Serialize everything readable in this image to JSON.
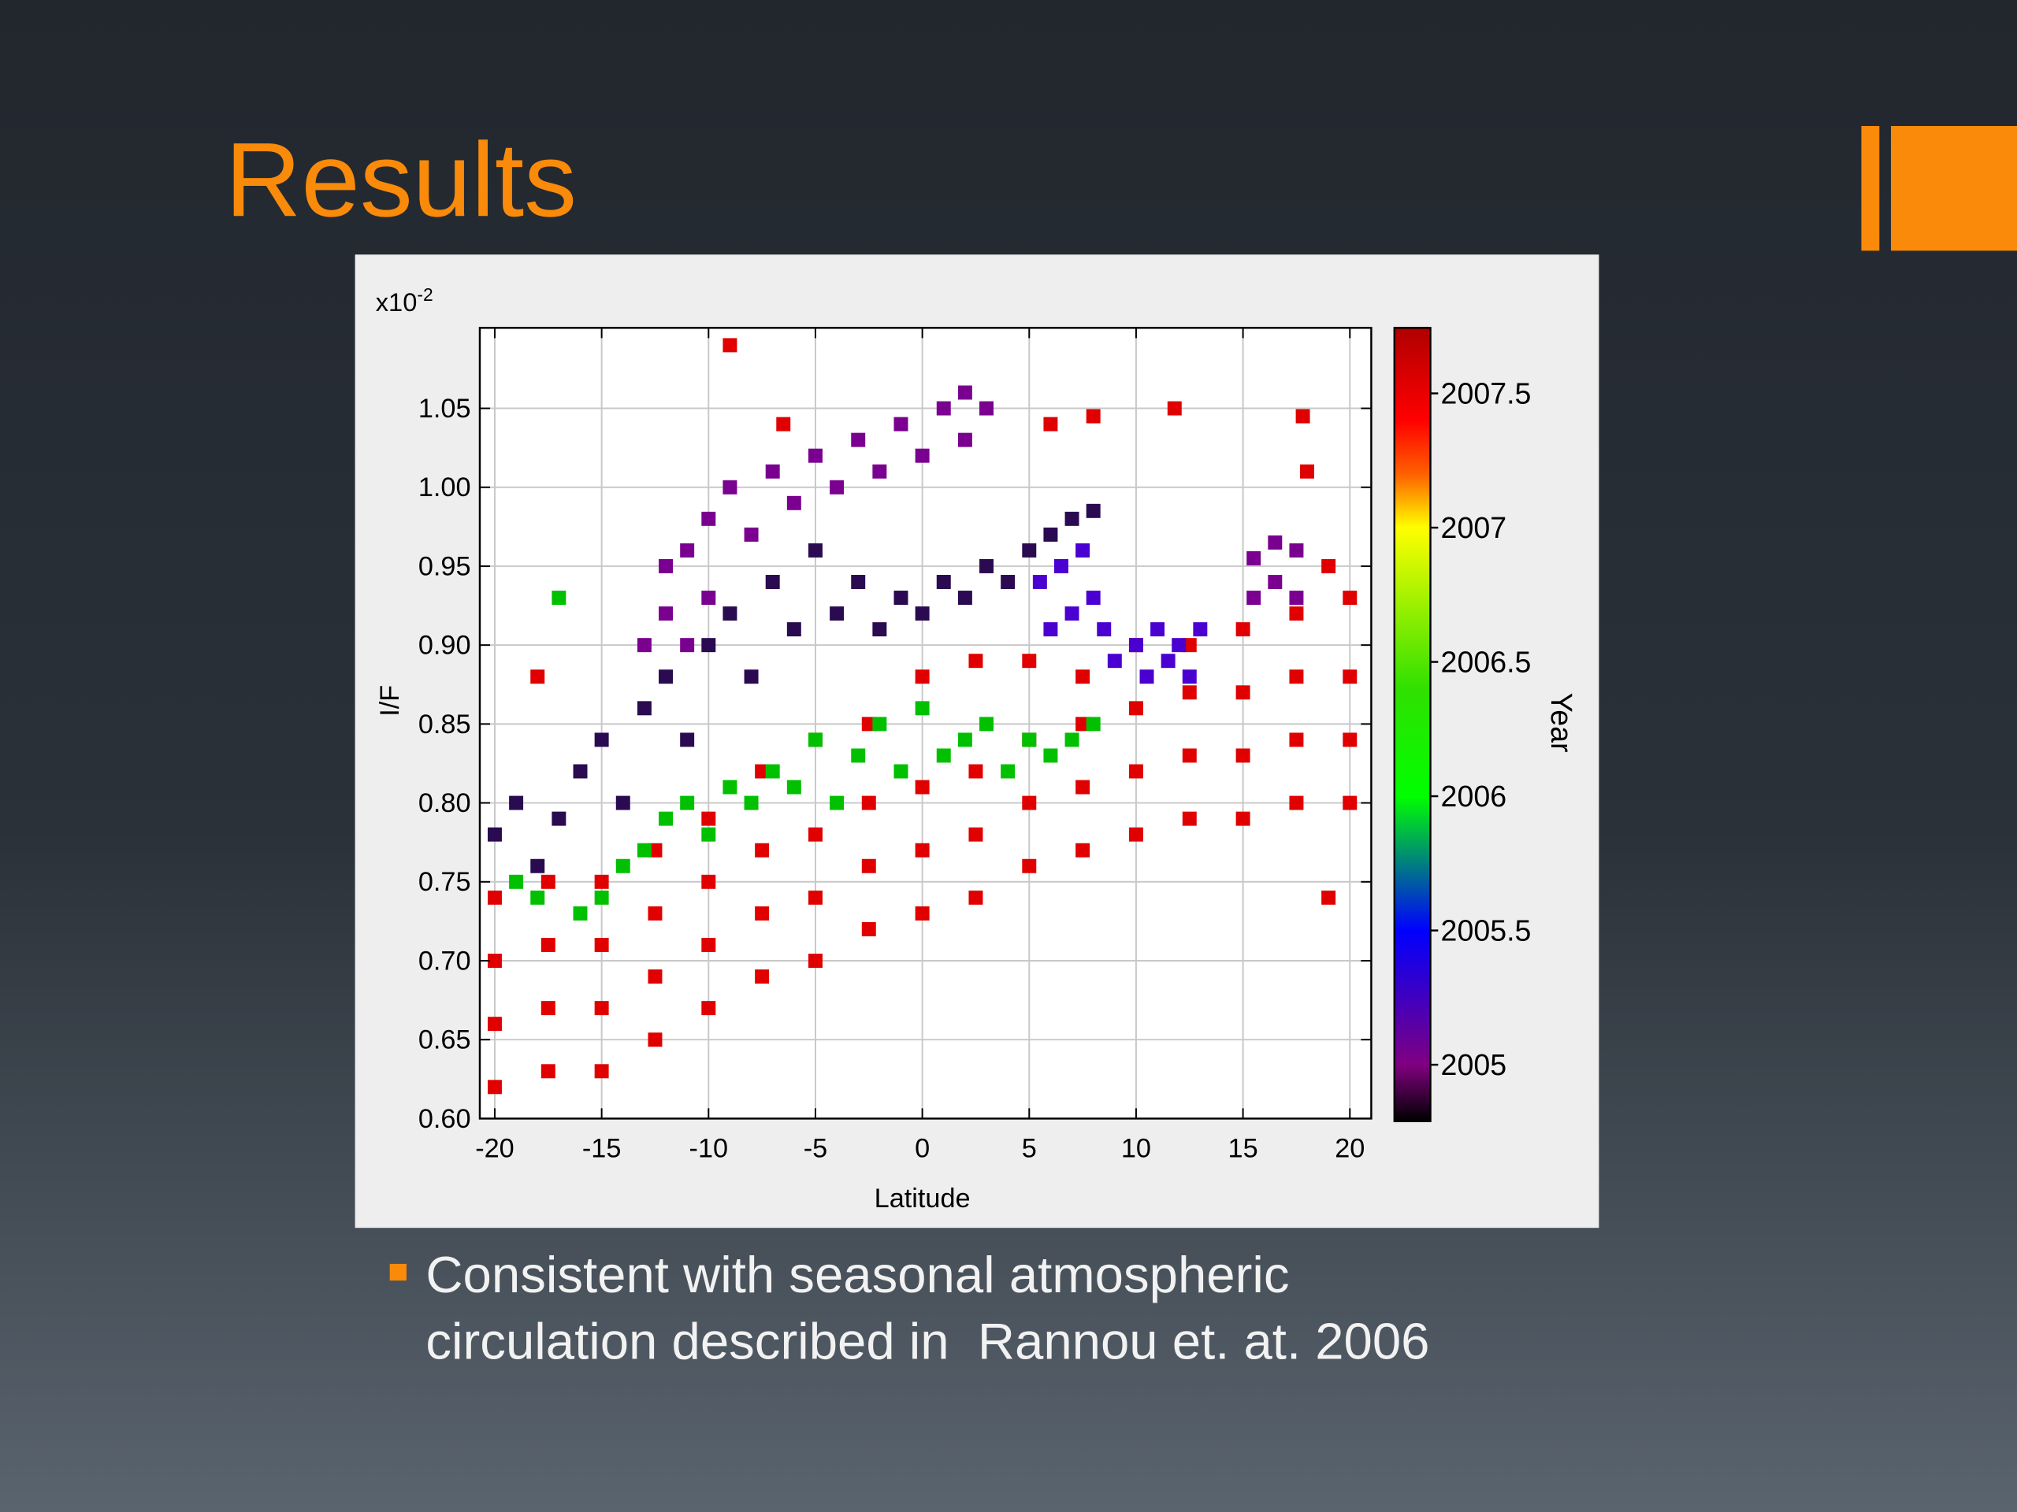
{
  "slide": {
    "title": "Results",
    "bullet": [
      "Consistent with seasonal atmospheric",
      "circulation described in  Rannou et. at. 2006"
    ]
  },
  "chart_data": {
    "type": "scatter",
    "xlabel": "Latitude",
    "ylabel": "I/F",
    "y_scale": {
      "base": "x10",
      "exponent": "-2"
    },
    "colorbar_label": "Year",
    "xlim": [
      -20.7,
      21
    ],
    "xticks": [
      -20,
      -15,
      -10,
      -5,
      0,
      5,
      10,
      15,
      20
    ],
    "ylim": [
      0.6,
      1.101
    ],
    "yticks": [
      {
        "value": 0.6,
        "label": "0.60"
      },
      0.65,
      {
        "value": 0.7,
        "label": "0.70"
      },
      0.75,
      {
        "value": 0.8,
        "label": "0.80"
      },
      0.85,
      {
        "value": 0.9,
        "label": "0.90"
      },
      0.95,
      {
        "value": 1.0,
        "label": "1.00"
      },
      1.05
    ],
    "grid": true,
    "clim": [
      2004.79,
      2007.744
    ],
    "cticks": [
      2005,
      2005.5,
      2006,
      2006.5,
      2007,
      2007.5
    ],
    "colormap": [
      {
        "value": 2004.79,
        "color": "#000000"
      },
      {
        "value": 2005,
        "color": "#800080"
      },
      {
        "value": 2005.5,
        "color": "#0000ff"
      },
      {
        "value": 2006,
        "color": "#00ff00"
      },
      {
        "value": 2006.4,
        "color": "#30e000"
      },
      {
        "value": 2007,
        "color": "#ffff00"
      },
      {
        "value": 2007.2,
        "color": "#ff6000"
      },
      {
        "value": 2007.4,
        "color": "#ff0000"
      },
      {
        "value": 2007.744,
        "color": "#b00000"
      }
    ],
    "series": [
      {
        "color": "#e00000",
        "x": [
          -20,
          -20,
          -20,
          -20,
          -17.5,
          -17.5,
          -17.5,
          -17.5,
          -15,
          -15,
          -15,
          -15,
          -12.5,
          -12.5,
          -12.5,
          -12.5,
          -10,
          -10,
          -10,
          -10,
          -7.5,
          -7.5,
          -7.5,
          -7.5,
          -5,
          -5,
          -5,
          -5,
          -2.5,
          -2.5,
          -2.5,
          -2.5,
          0,
          0,
          0,
          0,
          2.5,
          2.5,
          2.5,
          2.5,
          5,
          5,
          5,
          5,
          7.5,
          7.5,
          7.5,
          7.5,
          10,
          10,
          10,
          10,
          12.5,
          12.5,
          12.5,
          12.5,
          15,
          15,
          15,
          15,
          17.5,
          17.5,
          17.5,
          17.5,
          20,
          20,
          20,
          20,
          -18,
          -9,
          -6.5,
          6,
          8,
          11.8,
          17.8,
          18,
          19,
          19
        ],
        "values": [
          0.62,
          0.66,
          0.7,
          0.74,
          0.63,
          0.67,
          0.71,
          0.75,
          0.63,
          0.67,
          0.71,
          0.75,
          0.65,
          0.69,
          0.73,
          0.77,
          0.67,
          0.71,
          0.75,
          0.79,
          0.69,
          0.73,
          0.77,
          0.82,
          0.7,
          0.74,
          0.78,
          0.84,
          0.72,
          0.76,
          0.8,
          0.85,
          0.73,
          0.77,
          0.81,
          0.88,
          0.74,
          0.78,
          0.82,
          0.89,
          0.76,
          0.8,
          0.84,
          0.89,
          0.77,
          0.81,
          0.85,
          0.88,
          0.78,
          0.82,
          0.86,
          0.9,
          0.79,
          0.83,
          0.87,
          0.9,
          0.79,
          0.83,
          0.87,
          0.91,
          0.8,
          0.84,
          0.88,
          0.92,
          0.8,
          0.84,
          0.88,
          0.93,
          0.88,
          1.09,
          1.04,
          1.04,
          1.045,
          1.05,
          1.045,
          1.01,
          0.95,
          0.74
        ]
      },
      {
        "color": "#4a00d0",
        "x": [
          5.5,
          6.5,
          7.5,
          8,
          6,
          7,
          8.5,
          9,
          10,
          11,
          12,
          13,
          10.5,
          11.5,
          12.5
        ],
        "values": [
          0.94,
          0.95,
          0.96,
          0.93,
          0.91,
          0.92,
          0.91,
          0.89,
          0.9,
          0.91,
          0.9,
          0.91,
          0.88,
          0.89,
          0.88
        ]
      },
      {
        "color": "#7a0090",
        "x": [
          -12,
          -12,
          -11,
          -10,
          -10,
          -9,
          -8,
          -7,
          -6,
          -5,
          -4,
          -3,
          -2,
          -1,
          0,
          1,
          2,
          2,
          3,
          -13,
          -11,
          15.5,
          15.5,
          16.5,
          16.5,
          17.5,
          17.5
        ],
        "values": [
          0.92,
          0.95,
          0.96,
          0.98,
          0.93,
          1.0,
          0.97,
          1.01,
          0.99,
          1.02,
          1.0,
          1.03,
          1.01,
          1.04,
          1.02,
          1.05,
          1.03,
          1.06,
          1.05,
          0.9,
          0.9,
          0.93,
          0.955,
          0.94,
          0.965,
          0.93,
          0.96
        ]
      },
      {
        "color": "#2a0a50",
        "x": [
          -20,
          -19,
          -18,
          -17,
          -16,
          -15,
          -14,
          -13,
          -12,
          -11,
          -10,
          -9,
          -8,
          -7,
          -6,
          -5,
          -4,
          -3,
          -2,
          -1,
          0,
          1,
          2,
          3,
          4,
          5,
          6,
          7,
          8
        ],
        "values": [
          0.78,
          0.8,
          0.76,
          0.79,
          0.82,
          0.84,
          0.8,
          0.86,
          0.88,
          0.84,
          0.9,
          0.92,
          0.88,
          0.94,
          0.91,
          0.96,
          0.92,
          0.94,
          0.91,
          0.93,
          0.92,
          0.94,
          0.93,
          0.95,
          0.94,
          0.96,
          0.97,
          0.98,
          0.985
        ]
      },
      {
        "color": "#00c000",
        "x": [
          -19,
          -18,
          -16,
          -15,
          -14,
          -13,
          -12,
          -11,
          -10,
          -9,
          -8,
          -7,
          -6,
          -5,
          -4,
          -3,
          -2,
          -1,
          0,
          1,
          2,
          3,
          4,
          5,
          6,
          7,
          8,
          -17
        ],
        "values": [
          0.75,
          0.74,
          0.73,
          0.74,
          0.76,
          0.77,
          0.79,
          0.8,
          0.78,
          0.81,
          0.8,
          0.82,
          0.81,
          0.84,
          0.8,
          0.83,
          0.85,
          0.82,
          0.86,
          0.83,
          0.84,
          0.85,
          0.82,
          0.84,
          0.83,
          0.84,
          0.85,
          0.93
        ]
      }
    ]
  }
}
